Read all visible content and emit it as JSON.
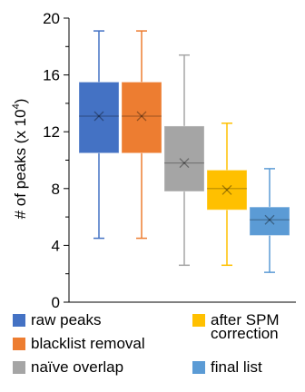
{
  "chart_data": {
    "type": "box",
    "ylabel": "# of peaks (x 10",
    "ylabel_sup": "4",
    "ylabel_close": ")",
    "ylim": [
      0,
      20
    ],
    "yticks": [
      0,
      4,
      8,
      12,
      16,
      20
    ],
    "grid": false,
    "legend_position": "bottom",
    "series": [
      {
        "name": "raw peaks",
        "color": "#4472C4",
        "min": 4.5,
        "q1": 10.5,
        "median": 13.1,
        "mean": 13.1,
        "q3": 15.5,
        "max": 19.1
      },
      {
        "name": "blacklist removal",
        "color": "#ED7D31",
        "min": 4.5,
        "q1": 10.5,
        "median": 13.1,
        "mean": 13.1,
        "q3": 15.5,
        "max": 19.1
      },
      {
        "name": "naïve overlap",
        "color": "#A5A5A5",
        "min": 2.6,
        "q1": 7.8,
        "median": 9.8,
        "mean": 9.8,
        "q3": 12.4,
        "max": 17.4
      },
      {
        "name": "after SPM correction",
        "color": "#FFC000",
        "min": 2.6,
        "q1": 6.5,
        "median": 8.0,
        "mean": 7.9,
        "q3": 9.3,
        "max": 12.6
      },
      {
        "name": "final list",
        "color": "#5B9BD5",
        "min": 2.1,
        "q1": 4.7,
        "median": 5.8,
        "mean": 5.8,
        "q3": 6.7,
        "max": 9.4
      }
    ],
    "legend": [
      {
        "lines": [
          "raw peaks"
        ]
      },
      {
        "lines": [
          "after SPM",
          "correction"
        ]
      },
      {
        "lines": [
          "blacklist removal"
        ]
      },
      {
        "lines": [
          "naïve overlap"
        ]
      },
      {
        "lines": [
          "final list"
        ]
      }
    ]
  }
}
